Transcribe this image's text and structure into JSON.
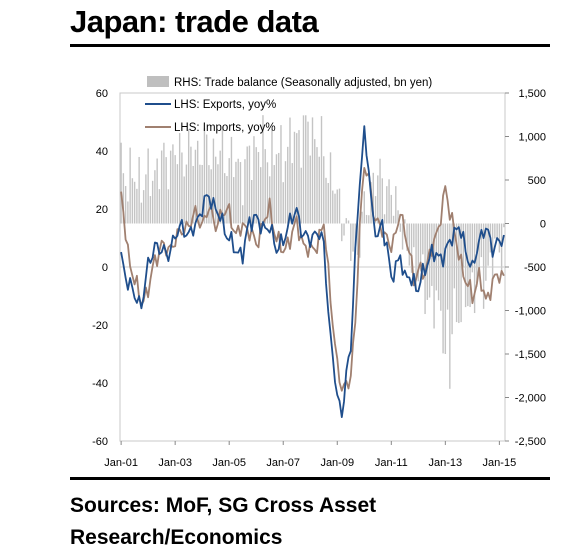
{
  "title": "Japan: trade data",
  "source_lines": [
    "Sources: MoF, SG Cross Asset",
    "Research/Economics"
  ],
  "chart_data": {
    "type": "bar+line",
    "legend_placement": "top-left",
    "x_tick_labels": [
      "Jan-01",
      "Jan-03",
      "Jan-05",
      "Jan-07",
      "Jan-09",
      "Jan-11",
      "Jan-13",
      "Jan-15"
    ],
    "left_axis": {
      "ticks": [
        "60",
        "40",
        "20",
        "0",
        "-20",
        "-40",
        "-60"
      ],
      "range": [
        -60,
        60
      ]
    },
    "right_axis": {
      "ticks": [
        "1,500",
        "1,000",
        "500",
        "0",
        "-500",
        "-1,000",
        "-1,500",
        "-2,000",
        "-2,500"
      ],
      "range": [
        -2500,
        1500
      ]
    },
    "legend": [
      {
        "label": "RHS: Trade balance (Seasonally adjusted, bn yen)",
        "color": "#bfbfbf",
        "kind": "bar"
      },
      {
        "label": "LHS: Exports, yoy%",
        "color": "#1f4e8c",
        "kind": "line"
      },
      {
        "label": "LHS: Imports, yoy%",
        "color": "#a08070",
        "kind": "line"
      }
    ],
    "trade_balance_anchors": {
      "x": [
        0,
        6,
        12,
        18,
        24,
        30,
        36,
        42,
        48,
        54,
        60,
        66,
        72,
        78,
        84,
        90,
        96,
        100,
        104,
        108,
        112,
        116,
        120,
        124,
        126,
        132,
        138,
        144,
        150,
        156,
        162,
        168
      ],
      "y": [
        600,
        500,
        500,
        700,
        800,
        800,
        850,
        800,
        750,
        600,
        900,
        800,
        800,
        1000,
        1100,
        800,
        300,
        -100,
        -400,
        100,
        500,
        500,
        300,
        100,
        -300,
        -600,
        -900,
        -1100,
        -1000,
        -800,
        -600,
        -250
      ]
    },
    "exports_anchors": {
      "x": [
        0,
        3,
        6,
        9,
        12,
        15,
        18,
        21,
        24,
        27,
        30,
        33,
        36,
        39,
        42,
        45,
        48,
        51,
        54,
        57,
        60,
        63,
        66,
        69,
        72,
        75,
        78,
        81,
        84,
        87,
        90,
        93,
        96,
        98,
        100,
        102,
        104,
        106,
        108,
        110,
        112,
        114,
        116,
        118,
        120,
        122,
        124,
        126,
        128,
        130,
        132,
        135,
        138,
        141,
        144,
        147,
        150,
        153,
        156,
        159,
        162,
        165,
        168
      ],
      "y": [
        3,
        -5,
        -10,
        -13,
        0,
        8,
        5,
        5,
        10,
        15,
        10,
        15,
        20,
        25,
        20,
        15,
        10,
        5,
        5,
        15,
        18,
        12,
        15,
        5,
        10,
        15,
        20,
        10,
        10,
        12,
        8,
        -25,
        -45,
        -50,
        -38,
        -28,
        5,
        30,
        45,
        35,
        15,
        10,
        15,
        8,
        -5,
        0,
        5,
        -5,
        -3,
        -5,
        -8,
        0,
        5,
        3,
        5,
        10,
        15,
        5,
        0,
        8,
        15,
        5,
        10
      ]
    },
    "imports_anchors": {
      "x": [
        0,
        3,
        6,
        9,
        12,
        15,
        18,
        21,
        24,
        27,
        30,
        33,
        36,
        39,
        42,
        45,
        48,
        51,
        54,
        57,
        60,
        63,
        66,
        69,
        72,
        75,
        78,
        81,
        84,
        87,
        90,
        93,
        96,
        98,
        100,
        102,
        104,
        106,
        108,
        110,
        112,
        114,
        116,
        118,
        120,
        122,
        124,
        126,
        128,
        130,
        132,
        135,
        138,
        141,
        144,
        147,
        150,
        153,
        156,
        159,
        162,
        165,
        168
      ],
      "y": [
        25,
        5,
        -5,
        -12,
        -8,
        2,
        8,
        5,
        10,
        12,
        15,
        18,
        15,
        20,
        15,
        18,
        20,
        10,
        15,
        12,
        8,
        15,
        20,
        10,
        5,
        10,
        15,
        8,
        5,
        8,
        15,
        -10,
        -35,
        -42,
        -40,
        -38,
        -20,
        15,
        35,
        30,
        20,
        15,
        12,
        10,
        8,
        10,
        20,
        12,
        5,
        -5,
        0,
        -3,
        8,
        12,
        28,
        15,
        5,
        -5,
        -10,
        -3,
        -12,
        -5,
        -3
      ]
    }
  }
}
